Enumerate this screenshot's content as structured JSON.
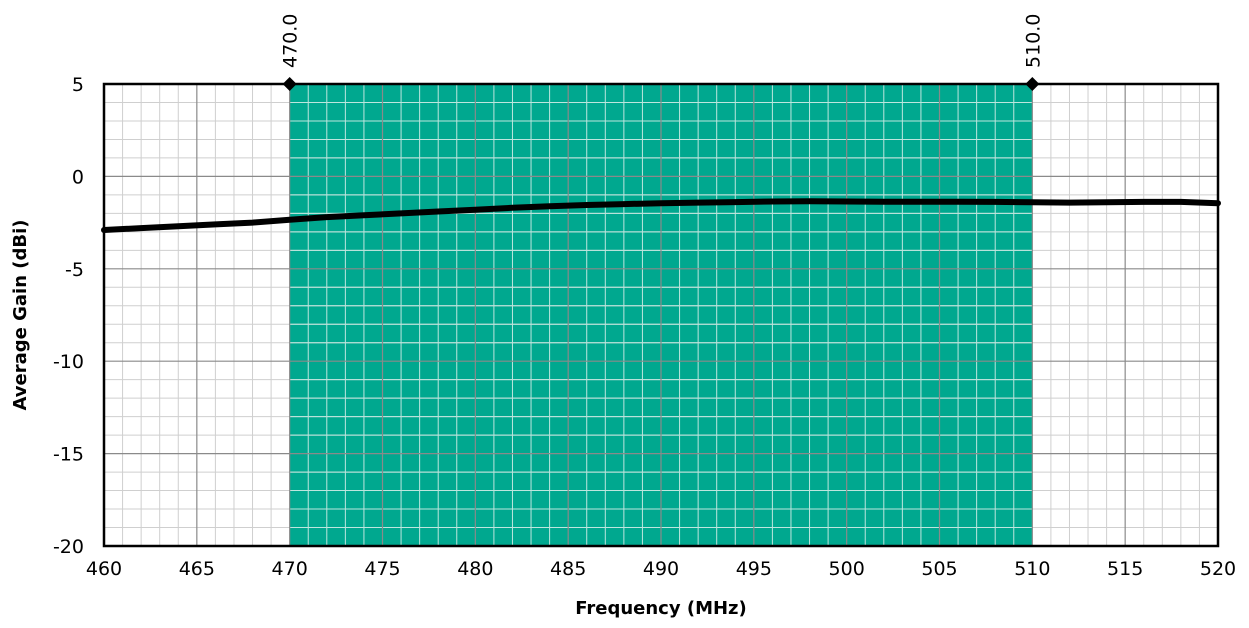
{
  "chart_data": {
    "type": "line",
    "title": "",
    "xlabel": "Frequency (MHz)",
    "ylabel": "Average Gain (dBi)",
    "xlim": [
      460,
      520
    ],
    "ylim": [
      -20,
      5
    ],
    "x_ticks": [
      "460",
      "465",
      "470",
      "475",
      "480",
      "485",
      "490",
      "495",
      "500",
      "505",
      "510",
      "515",
      "520"
    ],
    "y_ticks": [
      "5",
      "0",
      "-5",
      "-10",
      "-15",
      "-20"
    ],
    "grid": true,
    "legend": "none",
    "band": {
      "start": 470,
      "end": 510,
      "start_label": "470.0",
      "end_label": "510.0",
      "color": "#00a88f"
    },
    "series": [
      {
        "color": "#000000",
        "x": [
          460,
          462,
          464,
          466,
          468,
          470,
          472,
          474,
          476,
          478,
          480,
          482,
          484,
          486,
          488,
          490,
          492,
          494,
          496,
          498,
          500,
          502,
          504,
          506,
          508,
          510,
          512,
          514,
          516,
          518,
          520
        ],
        "y": [
          -2.9,
          -2.8,
          -2.7,
          -2.6,
          -2.5,
          -2.35,
          -2.2,
          -2.1,
          -2.0,
          -1.9,
          -1.8,
          -1.7,
          -1.62,
          -1.55,
          -1.5,
          -1.45,
          -1.42,
          -1.39,
          -1.36,
          -1.35,
          -1.36,
          -1.37,
          -1.37,
          -1.37,
          -1.38,
          -1.4,
          -1.42,
          -1.4,
          -1.38,
          -1.38,
          -1.45
        ]
      }
    ]
  }
}
